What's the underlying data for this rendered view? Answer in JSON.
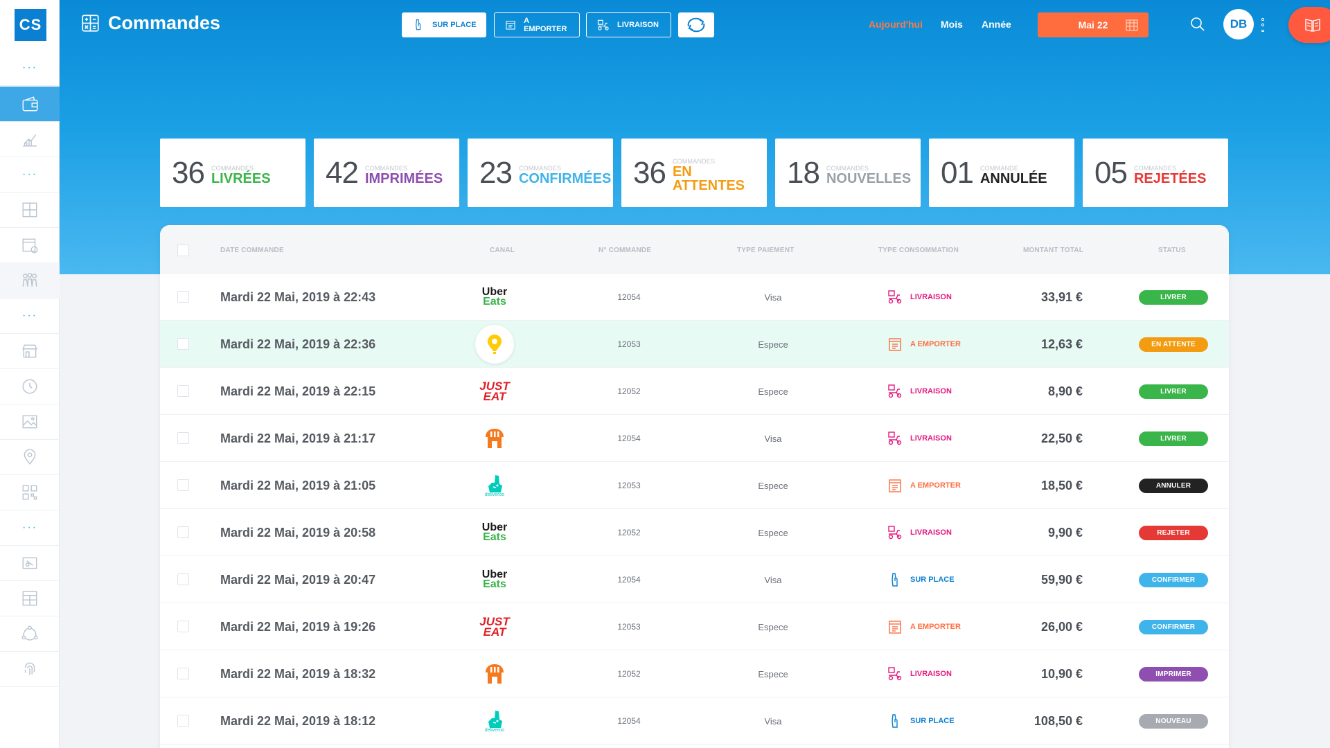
{
  "app": {
    "logo": "CS",
    "title": "Commandes"
  },
  "modes": [
    {
      "label": "SUR PLACE",
      "icon": "hand-bag-icon",
      "active": true
    },
    {
      "label": "A EMPORTER",
      "icon": "takeaway-box-icon",
      "active": false
    },
    {
      "label": "LIVRAISON",
      "icon": "delivery-scooter-icon",
      "active": false
    }
  ],
  "periods": {
    "today": "Aujourd'hui",
    "month": "Mois",
    "year": "Année"
  },
  "date_button": "Mai 22",
  "user": {
    "initials": "DB"
  },
  "stats": [
    {
      "num": "36",
      "small": "COMMANDES",
      "big": "LIVRÉES",
      "color": "#3ab54a"
    },
    {
      "num": "42",
      "small": "COMMANDES",
      "big": "IMPRIMÉES",
      "color": "#8e4fb0"
    },
    {
      "num": "23",
      "small": "COMMANDES",
      "big": "CONFIRMÉES",
      "color": "#3fb4ea"
    },
    {
      "num": "36",
      "small": "COMMANDES",
      "big": "EN ATTENTES",
      "color": "#f39c12"
    },
    {
      "num": "18",
      "small": "COMMANDES",
      "big": "NOUVELLES",
      "color": "#9aa0a8"
    },
    {
      "num": "01",
      "small": "COMMANDE",
      "big": "ANNULÉE",
      "color": "#222222"
    },
    {
      "num": "05",
      "small": "COMMANDES",
      "big": "REJETÉES",
      "color": "#e53935"
    }
  ],
  "table": {
    "headers": {
      "date": "DATE COMMANDE",
      "canal": "CANAL",
      "num": "N° COMMANDE",
      "pay": "TYPE PAIEMENT",
      "cons": "TYPE CONSOMMATION",
      "amount": "MONTANT TOTAL",
      "status": "STATUS"
    },
    "rows": [
      {
        "date": "Mardi 22 Mai, 2019 à  22:43",
        "canal": "uber",
        "num": "12054",
        "pay": "Visa",
        "cons": "LIVRAISON",
        "amount": "33,91 €",
        "status": "LIVRER"
      },
      {
        "date": "Mardi 22 Mai, 2019 à  22:36",
        "canal": "pin",
        "num": "12053",
        "pay": "Espece",
        "cons": "A EMPORTER",
        "amount": "12,63 €",
        "status": "EN ATTENTE"
      },
      {
        "date": "Mardi 22 Mai, 2019 à  22:15",
        "canal": "just",
        "num": "12052",
        "pay": "Espece",
        "cons": "LIVRAISON",
        "amount": "8,90 €",
        "status": "LIVRER"
      },
      {
        "date": "Mardi 22 Mai, 2019 à  21:17",
        "canal": "foodora",
        "num": "12054",
        "pay": "Visa",
        "cons": "LIVRAISON",
        "amount": "22,50 €",
        "status": "LIVRER"
      },
      {
        "date": "Mardi 22 Mai, 2019 à  21:05",
        "canal": "deliveroo",
        "num": "12053",
        "pay": "Espece",
        "cons": "A EMPORTER",
        "amount": "18,50 €",
        "status": "ANNULER"
      },
      {
        "date": "Mardi 22 Mai, 2019 à  20:58",
        "canal": "uber",
        "num": "12052",
        "pay": "Espece",
        "cons": "LIVRAISON",
        "amount": "9,90 €",
        "status": "REJETER"
      },
      {
        "date": "Mardi 22 Mai, 2019 à  20:47",
        "canal": "uber",
        "num": "12054",
        "pay": "Visa",
        "cons": "SUR PLACE",
        "amount": "59,90 €",
        "status": "CONFIRMER"
      },
      {
        "date": "Mardi 22 Mai, 2019 à  19:26",
        "canal": "just",
        "num": "12053",
        "pay": "Espece",
        "cons": "A EMPORTER",
        "amount": "26,00 €",
        "status": "CONFIRMER"
      },
      {
        "date": "Mardi 22 Mai, 2019 à  18:32",
        "canal": "foodora",
        "num": "12052",
        "pay": "Espece",
        "cons": "LIVRAISON",
        "amount": "10,90 €",
        "status": "IMPRIMER"
      },
      {
        "date": "Mardi 22 Mai, 2019 à  18:12",
        "canal": "deliveroo",
        "num": "12054",
        "pay": "Visa",
        "cons": "SUR PLACE",
        "amount": "108,50 €",
        "status": "NOUVEAU"
      }
    ]
  },
  "canal_labels": {
    "uber_1": "Uber",
    "uber_2": "Eats",
    "just_1": "JUST",
    "just_2": "EAT",
    "deliveroo": "deliveroo"
  },
  "colors": {
    "brand": "#0b7fd1",
    "accent": "#ff6d3f",
    "status": {
      "LIVRER": "#3ab54a",
      "EN ATTENTE": "#f39c12",
      "ANNULER": "#222222",
      "REJETER": "#e53935",
      "CONFIRMER": "#3fb4ea",
      "IMPRIMER": "#8e4fb0",
      "NOUVEAU": "#a7aab0"
    },
    "consumption": {
      "LIVRAISON": "#e5177e",
      "A EMPORTER": "#ff6d3f",
      "SUR PLACE": "#0b7fd1"
    }
  }
}
